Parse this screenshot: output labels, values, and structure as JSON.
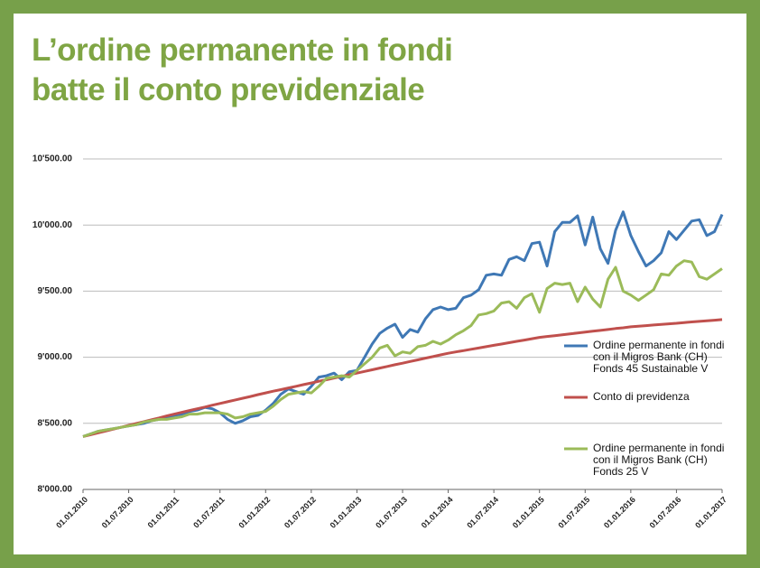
{
  "chart_data": {
    "type": "line",
    "title": [
      "L’ordine permanente in fondi",
      "batte il conto previdenziale"
    ],
    "x": [
      "01.01.2010",
      "01.02.2010",
      "01.03.2010",
      "01.04.2010",
      "01.05.2010",
      "01.06.2010",
      "01.07.2010",
      "01.08.2010",
      "01.09.2010",
      "01.10.2010",
      "01.11.2010",
      "01.12.2010",
      "01.01.2011",
      "01.02.2011",
      "01.03.2011",
      "01.04.2011",
      "01.05.2011",
      "01.06.2011",
      "01.07.2011",
      "01.08.2011",
      "01.09.2011",
      "01.10.2011",
      "01.11.2011",
      "01.12.2011",
      "01.01.2012",
      "01.02.2012",
      "01.03.2012",
      "01.04.2012",
      "01.05.2012",
      "01.06.2012",
      "01.07.2012",
      "01.08.2012",
      "01.09.2012",
      "01.10.2012",
      "01.11.2012",
      "01.12.2012",
      "01.01.2013",
      "01.02.2013",
      "01.03.2013",
      "01.04.2013",
      "01.05.2013",
      "01.06.2013",
      "01.07.2013",
      "01.08.2013",
      "01.09.2013",
      "01.10.2013",
      "01.11.2013",
      "01.12.2013",
      "01.01.2014",
      "01.02.2014",
      "01.03.2014",
      "01.04.2014",
      "01.05.2014",
      "01.06.2014",
      "01.07.2014",
      "01.08.2014",
      "01.09.2014",
      "01.10.2014",
      "01.11.2014",
      "01.12.2014",
      "01.01.2015",
      "01.02.2015",
      "01.03.2015",
      "01.04.2015",
      "01.05.2015",
      "01.06.2015",
      "01.07.2015",
      "01.08.2015",
      "01.09.2015",
      "01.10.2015",
      "01.11.2015",
      "01.12.2015",
      "01.01.2016",
      "01.02.2016",
      "01.03.2016",
      "01.04.2016",
      "01.05.2016",
      "01.06.2016",
      "01.07.2016",
      "01.08.2016",
      "01.09.2016",
      "01.10.2016",
      "01.11.2016",
      "01.12.2016",
      "01.01.2017"
    ],
    "series": [
      {
        "name": "Ordine permanente in fondi con il Migros Bank (CH) Fonds 45 Sustainable V",
        "color": "#3f78b5",
        "values": [
          8400,
          8420,
          8440,
          8450,
          8460,
          8470,
          8480,
          8490,
          8500,
          8520,
          8530,
          8540,
          8560,
          8570,
          8590,
          8600,
          8620,
          8610,
          8580,
          8530,
          8500,
          8520,
          8550,
          8560,
          8600,
          8650,
          8720,
          8760,
          8740,
          8720,
          8780,
          8850,
          8860,
          8880,
          8830,
          8890,
          8900,
          9000,
          9100,
          9180,
          9220,
          9250,
          9150,
          9210,
          9190,
          9290,
          9360,
          9380,
          9360,
          9370,
          9450,
          9470,
          9510,
          9620,
          9630,
          9620,
          9740,
          9760,
          9730,
          9860,
          9870,
          9690,
          9950,
          10020,
          10020,
          10070,
          9850,
          10060,
          9820,
          9710,
          9960,
          10100,
          9920,
          9800,
          9690,
          9730,
          9790,
          9950,
          9890,
          9960,
          10030,
          10040,
          9920,
          9950,
          10080
        ]
      },
      {
        "name": "Conto di previdenza",
        "color": "#c0504d",
        "values": [
          8400,
          8414,
          8428,
          8442,
          8456,
          8470,
          8485,
          8499,
          8513,
          8527,
          8541,
          8556,
          8570,
          8583,
          8597,
          8610,
          8623,
          8637,
          8650,
          8663,
          8677,
          8690,
          8703,
          8717,
          8730,
          8743,
          8755,
          8768,
          8780,
          8793,
          8805,
          8818,
          8830,
          8843,
          8855,
          8868,
          8880,
          8893,
          8905,
          8918,
          8930,
          8943,
          8955,
          8968,
          8980,
          8993,
          9005,
          9018,
          9030,
          9040,
          9050,
          9060,
          9070,
          9080,
          9090,
          9100,
          9110,
          9120,
          9130,
          9140,
          9150,
          9157,
          9163,
          9170,
          9177,
          9183,
          9190,
          9197,
          9203,
          9210,
          9217,
          9223,
          9230,
          9235,
          9239,
          9244,
          9248,
          9253,
          9257,
          9262,
          9267,
          9271,
          9276,
          9280,
          9285
        ]
      },
      {
        "name": "Ordine permanente in fondi con il Migros Bank (CH) Fonds 25 V",
        "color": "#9bbb59",
        "values": [
          8400,
          8420,
          8440,
          8450,
          8460,
          8470,
          8480,
          8490,
          8510,
          8520,
          8530,
          8530,
          8540,
          8550,
          8570,
          8570,
          8580,
          8580,
          8580,
          8570,
          8540,
          8550,
          8570,
          8580,
          8590,
          8630,
          8680,
          8720,
          8730,
          8740,
          8730,
          8780,
          8840,
          8850,
          8860,
          8850,
          8900,
          8950,
          9000,
          9070,
          9090,
          9010,
          9040,
          9030,
          9080,
          9090,
          9120,
          9100,
          9130,
          9170,
          9200,
          9240,
          9320,
          9330,
          9350,
          9410,
          9420,
          9370,
          9450,
          9480,
          9340,
          9520,
          9560,
          9550,
          9560,
          9420,
          9530,
          9440,
          9380,
          9590,
          9680,
          9500,
          9470,
          9430,
          9470,
          9510,
          9630,
          9620,
          9690,
          9730,
          9720,
          9610,
          9590,
          9630,
          9670
        ]
      }
    ],
    "xticks": [
      "01.01.2010",
      "01.07.2010",
      "01.01.2011",
      "01.07.2011",
      "01.01.2012",
      "01.07.2012",
      "01.01.2013",
      "01.07.2013",
      "01.01.2014",
      "01.07.2014",
      "01.01.2015",
      "01.07.2015",
      "01.01.2016",
      "01.07.2016",
      "01.01.2017"
    ],
    "ylim": [
      8000,
      10500
    ],
    "yticks": [
      {
        "value": 8000,
        "label": "8'000.00"
      },
      {
        "value": 8500,
        "label": "8'500.00"
      },
      {
        "value": 9000,
        "label": "9'000.00"
      },
      {
        "value": 9500,
        "label": "9'500.00"
      },
      {
        "value": 10000,
        "label": "10'000.00"
      },
      {
        "value": 10500,
        "label": "10'500.00"
      }
    ],
    "grid": true
  }
}
